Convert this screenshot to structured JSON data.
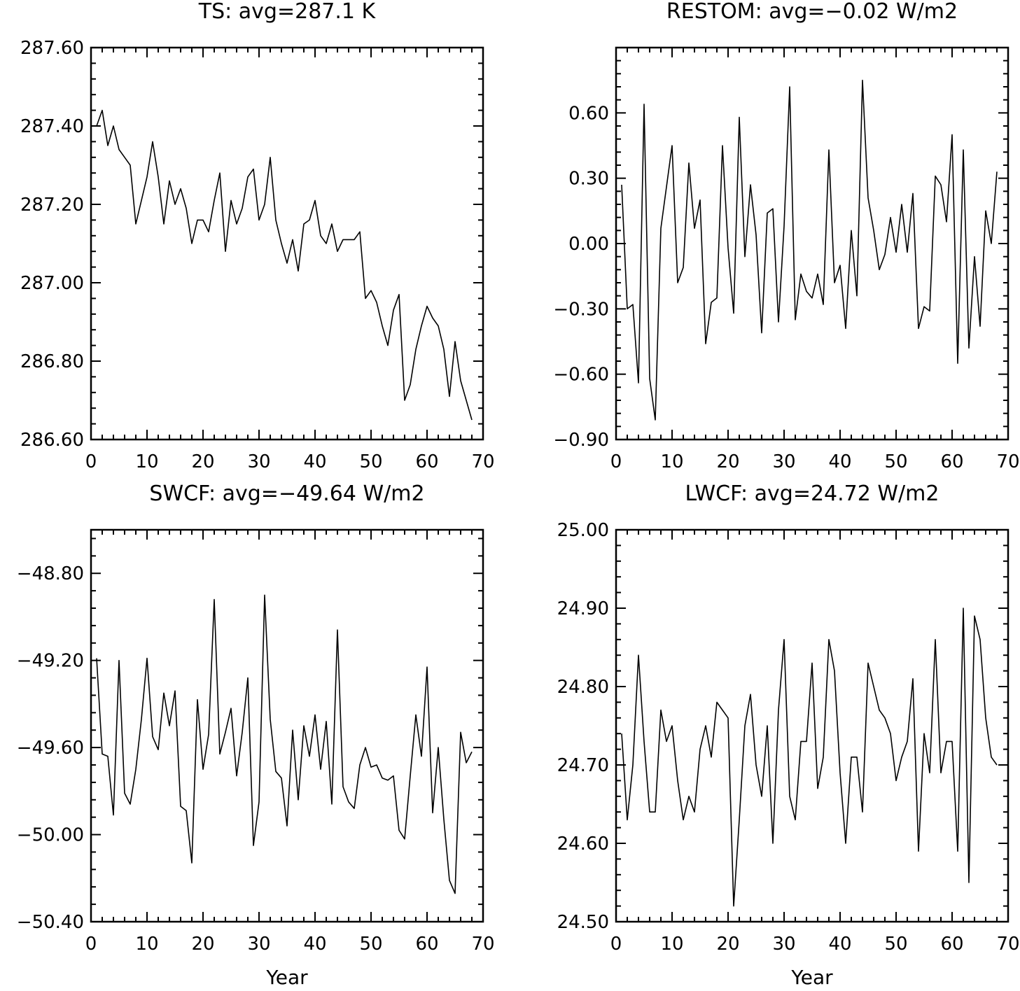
{
  "chart_data": [
    {
      "type": "line",
      "title": "TS: avg=287.1 K",
      "xlabel": "",
      "ylabel": "",
      "xlim": [
        0,
        70
      ],
      "ylim": [
        286.6,
        287.6
      ],
      "xticks": [
        0,
        10,
        20,
        30,
        40,
        50,
        60,
        70
      ],
      "xtick_labels": [
        "0",
        "10",
        "20",
        "30",
        "40",
        "50",
        "60",
        "70"
      ],
      "yticks": [
        286.6,
        286.8,
        287.0,
        287.2,
        287.4,
        287.6
      ],
      "ytick_labels": [
        "286.60",
        "286.80",
        "287.00",
        "287.20",
        "287.40",
        "287.60"
      ],
      "y_minor_step": 0.04,
      "x_minor_step": 2,
      "grid": false,
      "x": [
        1,
        2,
        3,
        4,
        5,
        6,
        7,
        8,
        9,
        10,
        11,
        12,
        13,
        14,
        15,
        16,
        17,
        18,
        19,
        20,
        21,
        22,
        23,
        24,
        25,
        26,
        27,
        28,
        29,
        30,
        31,
        32,
        33,
        34,
        35,
        36,
        37,
        38,
        39,
        40,
        41,
        42,
        43,
        44,
        45,
        46,
        47,
        48,
        49,
        50,
        51,
        52,
        53,
        54,
        55,
        56,
        57,
        58,
        59,
        60,
        61,
        62,
        63,
        64,
        65,
        66,
        67,
        68
      ],
      "series": [
        {
          "values": [
            287.4,
            287.44,
            287.35,
            287.4,
            287.34,
            287.32,
            287.3,
            287.15,
            287.21,
            287.27,
            287.36,
            287.27,
            287.15,
            287.26,
            287.2,
            287.24,
            287.19,
            287.1,
            287.16,
            287.16,
            287.13,
            287.21,
            287.28,
            287.08,
            287.21,
            287.15,
            287.19,
            287.27,
            287.29,
            287.16,
            287.2,
            287.32,
            287.16,
            287.1,
            287.05,
            287.11,
            287.03,
            287.15,
            287.16,
            287.21,
            287.12,
            287.1,
            287.15,
            287.08,
            287.11,
            287.11,
            287.11,
            287.13,
            286.96,
            286.98,
            286.95,
            286.89,
            286.84,
            286.93,
            286.97,
            286.7,
            286.74,
            286.83,
            286.89,
            286.94,
            286.91,
            286.89,
            286.83,
            286.71,
            286.85,
            286.75,
            286.7,
            286.65
          ]
        }
      ]
    },
    {
      "type": "line",
      "title": "RESTOM: avg=−0.02 W/m2",
      "xlabel": "",
      "ylabel": "",
      "xlim": [
        0,
        70
      ],
      "ylim": [
        -0.9,
        0.9
      ],
      "xticks": [
        0,
        10,
        20,
        30,
        40,
        50,
        60,
        70
      ],
      "xtick_labels": [
        "0",
        "10",
        "20",
        "30",
        "40",
        "50",
        "60",
        "70"
      ],
      "yticks": [
        -0.9,
        -0.6,
        -0.3,
        0.0,
        0.3,
        0.6
      ],
      "ytick_labels": [
        "−0.90",
        "−0.60",
        "−0.30",
        "0.00",
        "0.30",
        "0.60"
      ],
      "y_minor_step": 0.06,
      "x_minor_step": 2,
      "grid": false,
      "x": [
        1,
        2,
        3,
        4,
        5,
        6,
        7,
        8,
        9,
        10,
        11,
        12,
        13,
        14,
        15,
        16,
        17,
        18,
        19,
        20,
        21,
        22,
        23,
        24,
        25,
        26,
        27,
        28,
        29,
        30,
        31,
        32,
        33,
        34,
        35,
        36,
        37,
        38,
        39,
        40,
        41,
        42,
        43,
        44,
        45,
        46,
        47,
        48,
        49,
        50,
        51,
        52,
        53,
        54,
        55,
        56,
        57,
        58,
        59,
        60,
        61,
        62,
        63,
        64,
        65,
        66,
        67,
        68
      ],
      "series": [
        {
          "values": [
            0.27,
            -0.3,
            -0.28,
            -0.64,
            0.64,
            -0.62,
            -0.81,
            0.07,
            0.26,
            0.45,
            -0.18,
            -0.11,
            0.37,
            0.07,
            0.2,
            -0.46,
            -0.27,
            -0.25,
            0.45,
            -0.02,
            -0.32,
            0.58,
            -0.06,
            0.27,
            0.04,
            -0.41,
            0.14,
            0.16,
            -0.36,
            0.08,
            0.72,
            -0.35,
            -0.14,
            -0.22,
            -0.25,
            -0.14,
            -0.28,
            0.43,
            -0.18,
            -0.1,
            -0.39,
            0.06,
            -0.24,
            0.75,
            0.21,
            0.06,
            -0.12,
            -0.05,
            0.12,
            -0.04,
            0.18,
            -0.04,
            0.23,
            -0.39,
            -0.29,
            -0.31,
            0.31,
            0.27,
            0.1,
            0.5,
            -0.55,
            0.43,
            -0.48,
            -0.06,
            -0.38,
            0.15,
            0.0,
            0.33
          ]
        }
      ]
    },
    {
      "type": "line",
      "title": "SWCF: avg=−49.64 W/m2",
      "xlabel": "Year",
      "ylabel": "",
      "xlim": [
        0,
        70
      ],
      "ylim": [
        -50.4,
        -48.6
      ],
      "xticks": [
        0,
        10,
        20,
        30,
        40,
        50,
        60,
        70
      ],
      "xtick_labels": [
        "0",
        "10",
        "20",
        "30",
        "40",
        "50",
        "60",
        "70"
      ],
      "yticks": [
        -50.4,
        -50.0,
        -49.6,
        -49.2,
        -48.8
      ],
      "ytick_labels": [
        "−50.40",
        "−50.00",
        "−49.60",
        "−49.20",
        "−48.80"
      ],
      "y_minor_step": 0.08,
      "x_minor_step": 2,
      "grid": false,
      "x": [
        1,
        2,
        3,
        4,
        5,
        6,
        7,
        8,
        9,
        10,
        11,
        12,
        13,
        14,
        15,
        16,
        17,
        18,
        19,
        20,
        21,
        22,
        23,
        24,
        25,
        26,
        27,
        28,
        29,
        30,
        31,
        32,
        33,
        34,
        35,
        36,
        37,
        38,
        39,
        40,
        41,
        42,
        43,
        44,
        45,
        46,
        47,
        48,
        49,
        50,
        51,
        52,
        53,
        54,
        55,
        56,
        57,
        58,
        59,
        60,
        61,
        62,
        63,
        64,
        65,
        66,
        67,
        68
      ],
      "series": [
        {
          "values": [
            -49.19,
            -49.63,
            -49.64,
            -49.91,
            -49.2,
            -49.81,
            -49.86,
            -49.7,
            -49.47,
            -49.19,
            -49.55,
            -49.61,
            -49.35,
            -49.5,
            -49.34,
            -49.87,
            -49.89,
            -50.13,
            -49.38,
            -49.7,
            -49.54,
            -48.92,
            -49.63,
            -49.53,
            -49.42,
            -49.73,
            -49.53,
            -49.28,
            -50.05,
            -49.85,
            -48.9,
            -49.47,
            -49.71,
            -49.74,
            -49.96,
            -49.52,
            -49.84,
            -49.5,
            -49.64,
            -49.45,
            -49.7,
            -49.48,
            -49.86,
            -49.06,
            -49.78,
            -49.85,
            -49.88,
            -49.68,
            -49.6,
            -49.69,
            -49.68,
            -49.74,
            -49.75,
            -49.73,
            -49.98,
            -50.02,
            -49.73,
            -49.45,
            -49.64,
            -49.23,
            -49.9,
            -49.6,
            -49.93,
            -50.21,
            -50.27,
            -49.53,
            -49.67,
            -49.62
          ]
        }
      ]
    },
    {
      "type": "line",
      "title": "LWCF: avg=24.72 W/m2",
      "xlabel": "Year",
      "ylabel": "",
      "xlim": [
        0,
        70
      ],
      "ylim": [
        24.5,
        25.0
      ],
      "xticks": [
        0,
        10,
        20,
        30,
        40,
        50,
        60,
        70
      ],
      "xtick_labels": [
        "0",
        "10",
        "20",
        "30",
        "40",
        "50",
        "60",
        "70"
      ],
      "yticks": [
        24.5,
        24.6,
        24.7,
        24.8,
        24.9,
        25.0
      ],
      "ytick_labels": [
        "24.50",
        "24.60",
        "24.70",
        "24.80",
        "24.90",
        "25.00"
      ],
      "y_minor_step": 0.02,
      "x_minor_step": 2,
      "grid": false,
      "x": [
        1,
        2,
        3,
        4,
        5,
        6,
        7,
        8,
        9,
        10,
        11,
        12,
        13,
        14,
        15,
        16,
        17,
        18,
        19,
        20,
        21,
        22,
        23,
        24,
        25,
        26,
        27,
        28,
        29,
        30,
        31,
        32,
        33,
        34,
        35,
        36,
        37,
        38,
        39,
        40,
        41,
        42,
        43,
        44,
        45,
        46,
        47,
        48,
        49,
        50,
        51,
        52,
        53,
        54,
        55,
        56,
        57,
        58,
        59,
        60,
        61,
        62,
        63,
        64,
        65,
        66,
        67,
        68
      ],
      "series": [
        {
          "values": [
            24.74,
            24.63,
            24.7,
            24.84,
            24.73,
            24.64,
            24.64,
            24.77,
            24.73,
            24.75,
            24.68,
            24.63,
            24.66,
            24.64,
            24.72,
            24.75,
            24.71,
            24.78,
            24.77,
            24.76,
            24.52,
            24.63,
            24.75,
            24.79,
            24.7,
            24.66,
            24.75,
            24.6,
            24.77,
            24.86,
            24.66,
            24.63,
            24.73,
            24.73,
            24.83,
            24.67,
            24.71,
            24.86,
            24.82,
            24.69,
            24.6,
            24.71,
            24.71,
            24.64,
            24.83,
            24.8,
            24.77,
            24.76,
            24.74,
            24.68,
            24.71,
            24.73,
            24.81,
            24.59,
            24.74,
            24.69,
            24.86,
            24.69,
            24.73,
            24.73,
            24.59,
            24.9,
            24.55,
            24.89,
            24.86,
            24.76,
            24.71,
            24.7
          ]
        }
      ]
    }
  ]
}
